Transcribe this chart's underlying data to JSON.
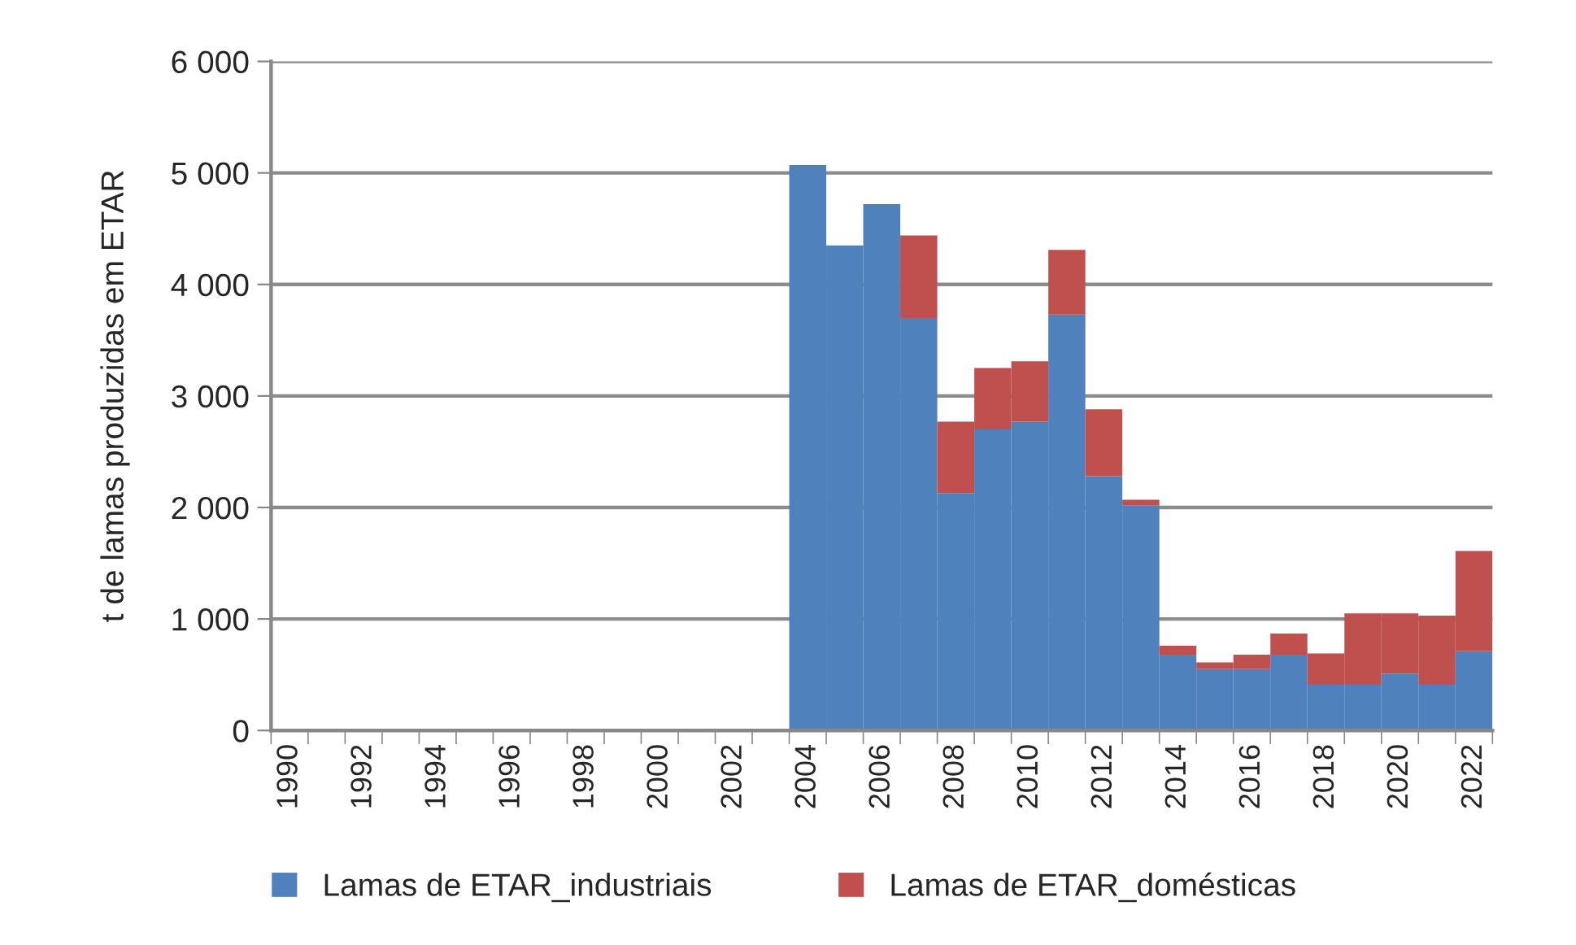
{
  "chart_data": {
    "type": "bar",
    "stacked": true,
    "ylabel": "t de lamas produzidas em ETAR",
    "categories": [
      "1990",
      null,
      "1992",
      null,
      "1994",
      null,
      "1996",
      null,
      "1998",
      null,
      "2000",
      null,
      "2002",
      null,
      "2004",
      null,
      "2006",
      null,
      "2008",
      null,
      "2010",
      null,
      "2012",
      null,
      "2014",
      null,
      "2016",
      null,
      "2018",
      null,
      "2020",
      null,
      "2022"
    ],
    "series": [
      {
        "name": "Lamas de ETAR_industriais",
        "color": "#4f81bd",
        "values": [
          0,
          0,
          0,
          0,
          0,
          0,
          0,
          0,
          0,
          0,
          0,
          0,
          0,
          0,
          5070,
          4350,
          4720,
          3700,
          2130,
          2700,
          2770,
          3730,
          2280,
          2020,
          680,
          550,
          550,
          680,
          410,
          410,
          510,
          410,
          710
        ]
      },
      {
        "name": "Lamas de ETAR_domésticas",
        "color": "#c0504d",
        "values": [
          0,
          0,
          0,
          0,
          0,
          0,
          0,
          0,
          0,
          0,
          0,
          0,
          0,
          0,
          0,
          0,
          0,
          740,
          640,
          550,
          540,
          580,
          600,
          50,
          80,
          60,
          130,
          190,
          280,
          640,
          540,
          620,
          900
        ]
      }
    ],
    "ylim": [
      0,
      6000
    ],
    "yticks": [
      {
        "value": 0,
        "label": "0"
      },
      {
        "value": 1000,
        "label": "1 000"
      },
      {
        "value": 2000,
        "label": "2 000"
      },
      {
        "value": 3000,
        "label": "3 000"
      },
      {
        "value": 4000,
        "label": "4 000"
      },
      {
        "value": 5000,
        "label": "5 000"
      },
      {
        "value": 6000,
        "label": "6 000"
      }
    ],
    "grid": "y",
    "legend": "bottom"
  }
}
